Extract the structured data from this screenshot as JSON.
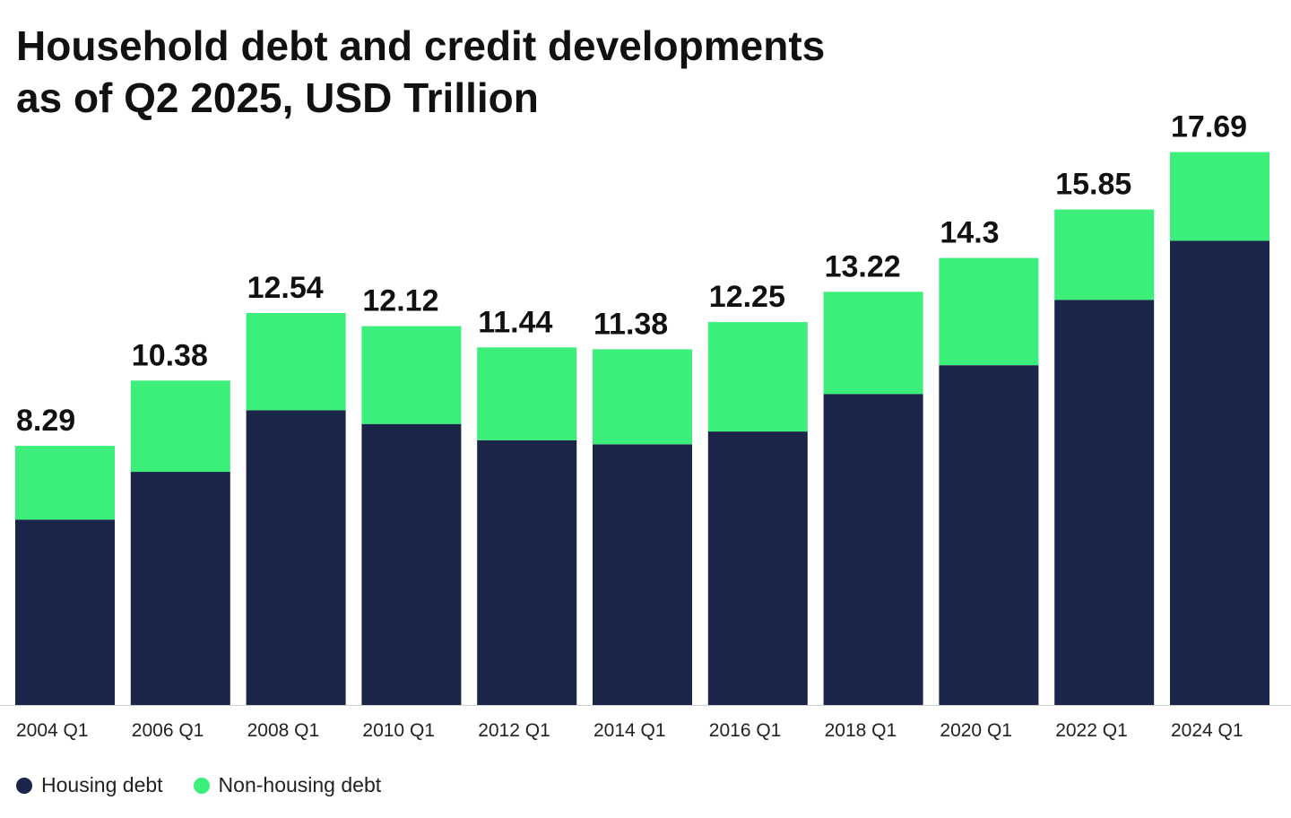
{
  "colors": {
    "housing": "#1b254a",
    "non_housing": "#3cef7b",
    "axis": "#d0d0d0"
  },
  "chart_data": {
    "type": "bar",
    "stacked": true,
    "title_lines": [
      "Household debt and credit developments",
      "as of Q2 2025, USD Trillion"
    ],
    "categories": [
      "2004 Q1",
      "2006 Q1",
      "2008 Q1",
      "2010 Q1",
      "2012 Q1",
      "2014 Q1",
      "2016 Q1",
      "2018 Q1",
      "2020 Q1",
      "2022 Q1",
      "2024 Q1"
    ],
    "series": [
      {
        "name": "Housing debt",
        "values": [
          5.93,
          7.46,
          9.43,
          8.99,
          8.47,
          8.34,
          8.75,
          9.95,
          10.87,
          12.96,
          14.85
        ]
      },
      {
        "name": "Non-housing debt",
        "values": [
          2.36,
          2.92,
          3.11,
          3.13,
          2.97,
          3.04,
          3.5,
          3.27,
          3.43,
          2.89,
          2.84
        ]
      }
    ],
    "totals": [
      "8.29",
      "10.38",
      "12.54",
      "12.12",
      "11.44",
      "11.38",
      "12.25",
      "13.22",
      "14.3",
      "15.85",
      "17.69"
    ],
    "ylim": [
      0,
      20
    ],
    "grid": false,
    "legend_position": "bottom-left"
  }
}
